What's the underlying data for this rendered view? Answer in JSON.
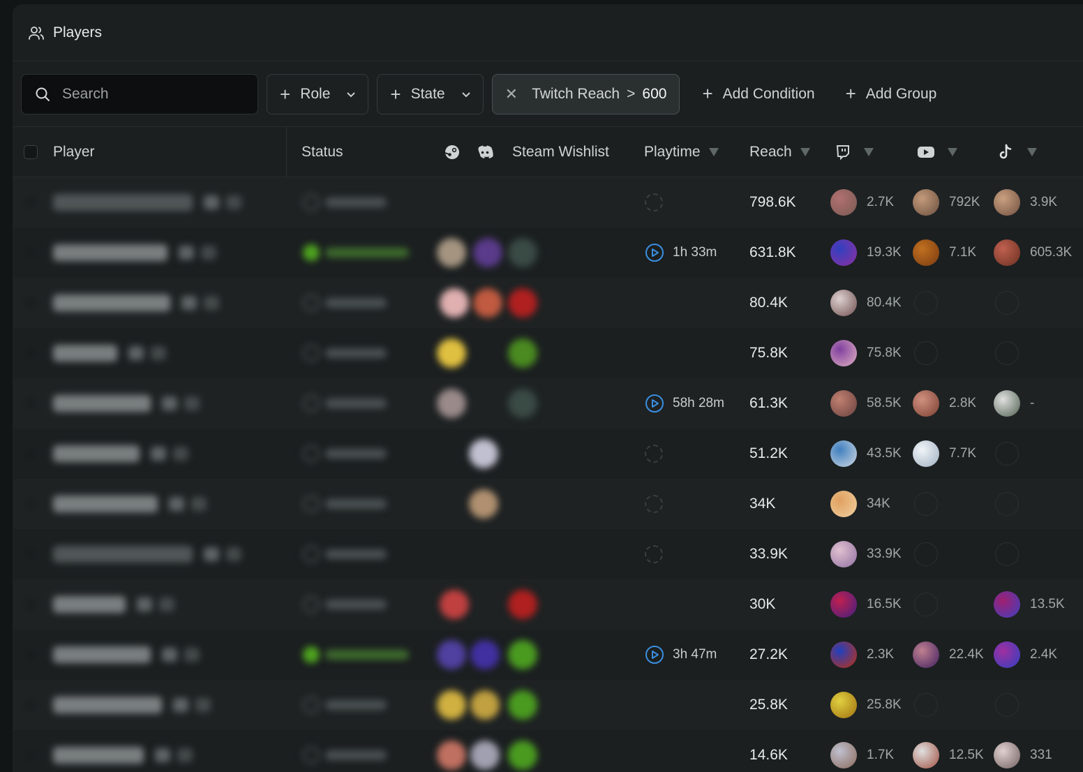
{
  "window": {
    "title": "Players"
  },
  "filters": {
    "search_placeholder": "Search",
    "role_label": "Role",
    "state_label": "State",
    "chip_field": "Twitch Reach",
    "chip_op": ">",
    "chip_value": "600",
    "add_condition": "Add Condition",
    "add_group": "Add Group"
  },
  "columns": {
    "player": "Player",
    "status": "Status",
    "steam_icon": "steam-icon",
    "discord_icon": "discord-icon",
    "wishlist": "Steam Wishlist",
    "playtime": "Playtime",
    "reach": "Reach",
    "twitch_icon": "twitch-icon",
    "youtube_icon": "youtube-icon",
    "tiktok_icon": "tiktok-icon"
  },
  "rows": [
    {
      "playtime": "",
      "reach": "798.6K",
      "twitch": "2.7K",
      "youtube": "792K",
      "tiktok": "3.9K"
    },
    {
      "playtime": "1h 33m",
      "reach": "631.8K",
      "twitch": "19.3K",
      "youtube": "7.1K",
      "tiktok": "605.3K"
    },
    {
      "playtime": "",
      "reach": "80.4K",
      "twitch": "80.4K",
      "youtube": "",
      "tiktok": ""
    },
    {
      "playtime": "",
      "reach": "75.8K",
      "twitch": "75.8K",
      "youtube": "",
      "tiktok": ""
    },
    {
      "playtime": "58h 28m",
      "reach": "61.3K",
      "twitch": "58.5K",
      "youtube": "2.8K",
      "tiktok": "-"
    },
    {
      "playtime": "",
      "reach": "51.2K",
      "twitch": "43.5K",
      "youtube": "7.7K",
      "tiktok": ""
    },
    {
      "playtime": "",
      "reach": "34K",
      "twitch": "34K",
      "youtube": "",
      "tiktok": ""
    },
    {
      "playtime": "",
      "reach": "33.9K",
      "twitch": "33.9K",
      "youtube": "",
      "tiktok": ""
    },
    {
      "playtime": "",
      "reach": "30K",
      "twitch": "16.5K",
      "youtube": "",
      "tiktok": "13.5K"
    },
    {
      "playtime": "3h 47m",
      "reach": "27.2K",
      "twitch": "2.3K",
      "youtube": "22.4K",
      "tiktok": "2.4K"
    },
    {
      "playtime": "",
      "reach": "25.8K",
      "twitch": "25.8K",
      "youtube": "",
      "tiktok": ""
    },
    {
      "playtime": "",
      "reach": "14.6K",
      "twitch": "1.7K",
      "youtube": "12.5K",
      "tiktok": "331"
    }
  ]
}
